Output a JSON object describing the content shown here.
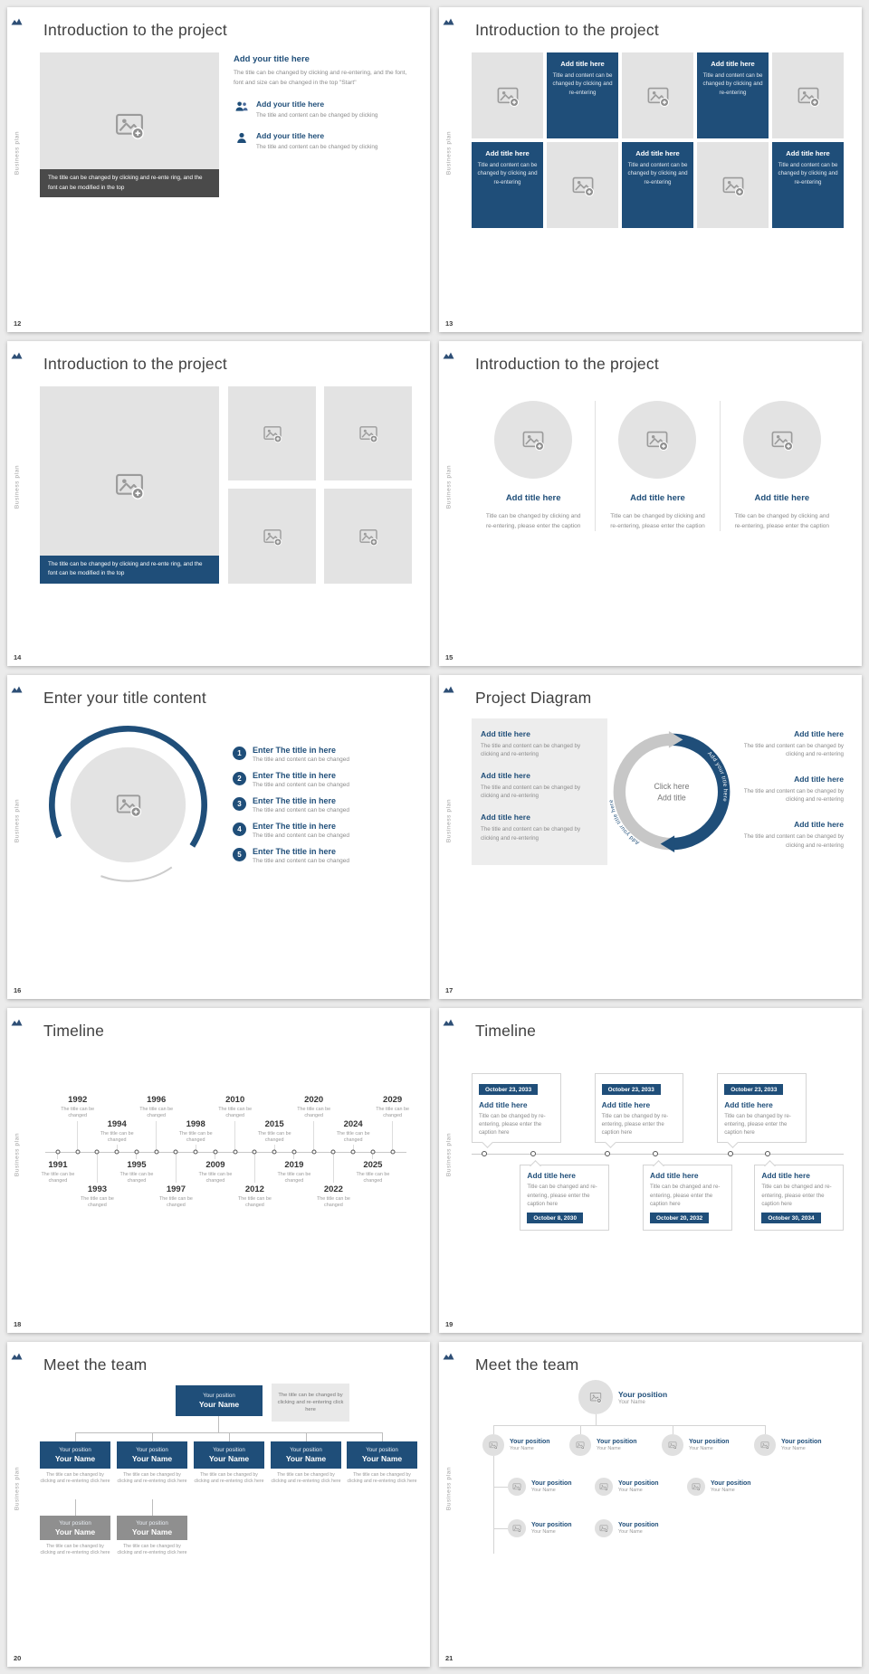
{
  "sidebar": {
    "brand_text": "Business plan"
  },
  "colors": {
    "navy": "#1f4e79",
    "placeholder_gray": "#e3e3e3",
    "caption_dark_bg": "#4a4a4a"
  },
  "slides": {
    "s12": {
      "page": "12",
      "title": "Introduction to the project",
      "image_caption": "The title can be changed by clicking and re-ente ring, and the font can be modified in the top",
      "items": [
        {
          "heading": "Add your title here",
          "body": "The title can be changed by clicking and re-entering, and the font, font and size can be changed in the top \"Start\""
        },
        {
          "heading": "Add your title here",
          "body": "The title and content can be changed by clicking",
          "icon": "people-icon"
        },
        {
          "heading": "Add your title here",
          "body": "The title and content can be changed by clicking",
          "icon": "person-icon"
        }
      ]
    },
    "s13": {
      "page": "13",
      "title": "Introduction to the project",
      "text_cell": {
        "heading": "Add title here",
        "body": "Title and content can be changed by clicking and re-entering"
      },
      "layout": [
        "image",
        "text",
        "image",
        "text",
        "image",
        "text",
        "image",
        "text",
        "image",
        "text"
      ]
    },
    "s14": {
      "page": "14",
      "title": "Introduction to the project",
      "image_caption": "The title can be changed by clicking and re-ente ring, and the font can be modified in the top"
    },
    "s15": {
      "page": "15",
      "title": "Introduction to the project",
      "columns": [
        {
          "heading": "Add title here",
          "body": "Title can be changed by clicking and re-entering, please enter the caption"
        },
        {
          "heading": "Add title here",
          "body": "Title can be changed by clicking and re-entering, please enter the caption"
        },
        {
          "heading": "Add title here",
          "body": "Title can be changed by clicking and re-entering, please enter the caption"
        }
      ]
    },
    "s16": {
      "page": "16",
      "title": "Enter your title content",
      "items": [
        {
          "num": "1",
          "heading": "Enter The title in here",
          "body": "The title and content can be changed"
        },
        {
          "num": "2",
          "heading": "Enter The title in here",
          "body": "The title and content can be changed"
        },
        {
          "num": "3",
          "heading": "Enter The title in here",
          "body": "The title and content can be changed"
        },
        {
          "num": "4",
          "heading": "Enter The title in here",
          "body": "The title and content can be changed"
        },
        {
          "num": "5",
          "heading": "Enter The title in here",
          "body": "The title and content can be changed"
        }
      ]
    },
    "s17": {
      "page": "17",
      "title": "Project Diagram",
      "center": {
        "line1": "Click here",
        "line2": "Add title"
      },
      "arc_label_left": "Add your title here",
      "arc_label_right": "Add your title here",
      "left_items": [
        {
          "heading": "Add title here",
          "body": "The title and content can be changed by clicking and re-entering"
        },
        {
          "heading": "Add title here",
          "body": "The title and content can be changed by clicking and re-entering"
        },
        {
          "heading": "Add title here",
          "body": "The title and content can be changed by clicking and re-entering"
        }
      ],
      "right_items": [
        {
          "heading": "Add title here",
          "body": "The title and content can be changed by clicking and re-entering"
        },
        {
          "heading": "Add title here",
          "body": "The title and content can be changed by clicking and re-entering"
        },
        {
          "heading": "Add title here",
          "body": "The title and content can be changed by clicking and re-entering"
        }
      ]
    },
    "s18": {
      "page": "18",
      "title": "Timeline",
      "caption": "The title can be changed",
      "markers": [
        {
          "year": "1991",
          "side": "below"
        },
        {
          "year": "1992",
          "side": "above"
        },
        {
          "year": "1993",
          "side": "below"
        },
        {
          "year": "1994",
          "side": "above"
        },
        {
          "year": "1995",
          "side": "below"
        },
        {
          "year": "1996",
          "side": "above"
        },
        {
          "year": "1997",
          "side": "below"
        },
        {
          "year": "1998",
          "side": "above"
        },
        {
          "year": "2009",
          "side": "below"
        },
        {
          "year": "2010",
          "side": "above"
        },
        {
          "year": "2012",
          "side": "below"
        },
        {
          "year": "2015",
          "side": "above"
        },
        {
          "year": "2019",
          "side": "below"
        },
        {
          "year": "2020",
          "side": "above"
        },
        {
          "year": "2022",
          "side": "below"
        },
        {
          "year": "2024",
          "side": "above"
        },
        {
          "year": "2025",
          "side": "below"
        },
        {
          "year": "2029",
          "side": "above"
        }
      ]
    },
    "s19": {
      "page": "19",
      "title": "Timeline",
      "top_items": [
        {
          "date": "October 23, 2033",
          "heading": "Add title here",
          "body": "Title can be changed by re-entering, please enter the caption here"
        },
        {
          "date": "October 23, 2033",
          "heading": "Add title here",
          "body": "Title can be changed by re-entering, please enter the caption here"
        },
        {
          "date": "October 23, 2033",
          "heading": "Add title here",
          "body": "Title can be changed by re-entering, please enter the caption here"
        }
      ],
      "bottom_items": [
        {
          "date": "October 8, 2030",
          "heading": "Add title here",
          "body": "Title can be changed and re-entering, please enter the caption here"
        },
        {
          "date": "October 20, 2032",
          "heading": "Add title here",
          "body": "Title can be changed and re-entering, please enter the caption here"
        },
        {
          "date": "October 30, 2034",
          "heading": "Add title here",
          "body": "Title can be changed and re-entering, please enter the caption here"
        }
      ]
    },
    "s20": {
      "page": "20",
      "title": "Meet the team",
      "position": "Your position",
      "name": "Your Name",
      "note": "The title can be changed by clicking and re-entering click here",
      "caption": "The title can be changed by clicking and re-entering click here"
    },
    "s21": {
      "page": "21",
      "title": "Meet the team",
      "position": "Your position",
      "name": "Your Name"
    }
  }
}
